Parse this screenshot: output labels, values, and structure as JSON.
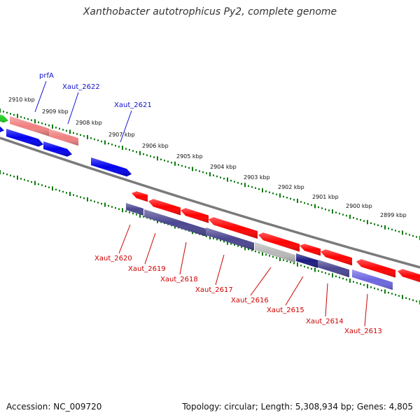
{
  "title": "Xanthobacter autotrophicus Py2, complete genome",
  "footer": {
    "accession": "Accession: NC_009720",
    "summary": "Topology: circular; Length: 5,308,934 bp; Genes: 4,805"
  },
  "colors": {
    "backbone": "#8a8a8a",
    "tick_track": "#0a7a0a",
    "forward_label": "#1111cc",
    "reverse_label": "#cc0000",
    "red_gene": "#ff0000",
    "pink_gene": "#f08080",
    "blue_gene": "#0000ee",
    "navy_gene": "#1a1a80",
    "slate_gene": "#4a4690",
    "lavender_gene": "#6b66e0",
    "gray_gene": "#b8b8b8",
    "green_gene": "#22cc22"
  },
  "scale_labels": [
    "2910 kbp",
    "2909 kbp",
    "2908 kbp",
    "2907 kbp",
    "2906 kbp",
    "2905 kbp",
    "2904 kbp",
    "2903 kbp",
    "2902 kbp",
    "2901 kbp",
    "2900 kbp",
    "2899 kbp"
  ],
  "gene_labels": {
    "forward": [
      "prfA",
      "Xaut_2622",
      "Xaut_2621"
    ],
    "reverse": [
      "Xaut_2620",
      "Xaut_2619",
      "Xaut_2618",
      "Xaut_2617",
      "Xaut_2616",
      "Xaut_2615",
      "Xaut_2614",
      "Xaut_2613"
    ]
  }
}
